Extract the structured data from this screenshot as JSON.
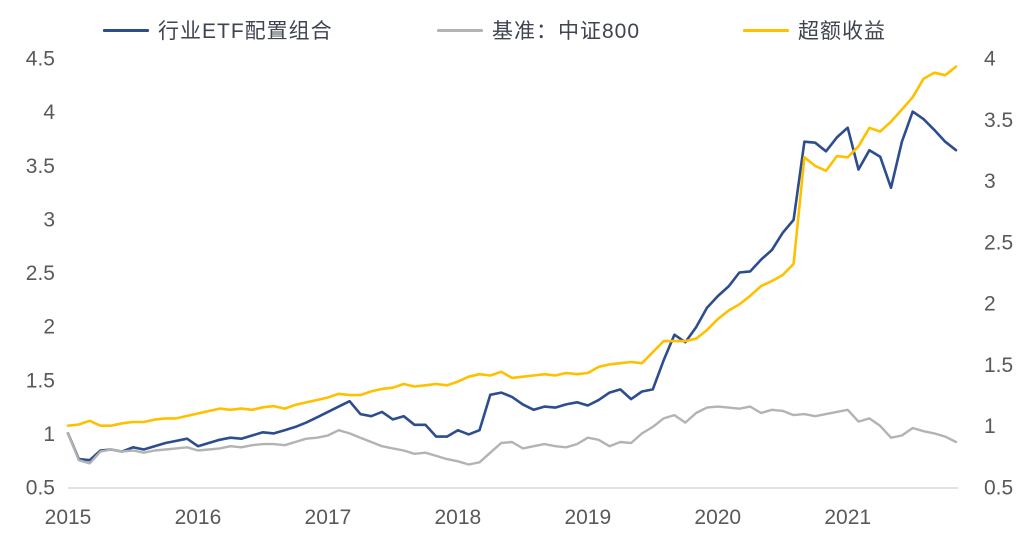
{
  "styles": {
    "background": "#ffffff",
    "axis_text_color": "#595959",
    "legend_text_color": "#3f4450",
    "baseline_color": "#d8d8d8"
  },
  "chart_data": {
    "type": "line",
    "title": "",
    "legend_position": "top",
    "grid": false,
    "x_axis": {
      "frequency": "monthly",
      "start": "2015-01",
      "end": "2021-11",
      "tick_labels": [
        "2015",
        "2016",
        "2017",
        "2018",
        "2019",
        "2020",
        "2021"
      ]
    },
    "y_axis_left": {
      "range": [
        0.5,
        4.5
      ],
      "tick_labels": [
        "4.5",
        "4",
        "3.5",
        "3",
        "2.5",
        "2",
        "1.5",
        "1",
        "0.5"
      ]
    },
    "y_axis_right": {
      "range": [
        0.5,
        4.0
      ],
      "tick_labels": [
        "4",
        "3.5",
        "3",
        "2.5",
        "2",
        "1.5",
        "1",
        "0.5"
      ]
    },
    "series": [
      {
        "key": "portfolio",
        "name": "行业ETF配置组合",
        "color": "#2d4d8e",
        "axis": "left",
        "stroke_width": 2.6,
        "values": [
          1.0,
          0.76,
          0.75,
          0.84,
          0.85,
          0.83,
          0.87,
          0.85,
          0.88,
          0.91,
          0.93,
          0.95,
          0.88,
          0.91,
          0.94,
          0.96,
          0.95,
          0.98,
          1.01,
          1.0,
          1.03,
          1.06,
          1.1,
          1.15,
          1.2,
          1.25,
          1.3,
          1.18,
          1.16,
          1.2,
          1.13,
          1.16,
          1.08,
          1.08,
          0.97,
          0.97,
          1.03,
          0.99,
          1.03,
          1.36,
          1.38,
          1.34,
          1.27,
          1.22,
          1.25,
          1.24,
          1.27,
          1.29,
          1.26,
          1.31,
          1.38,
          1.41,
          1.32,
          1.39,
          1.41,
          1.68,
          1.92,
          1.85,
          1.99,
          2.17,
          2.28,
          2.37,
          2.5,
          2.51,
          2.62,
          2.71,
          2.87,
          2.99,
          3.72,
          3.71,
          3.63,
          3.76,
          3.85,
          3.46,
          3.64,
          3.58,
          3.29,
          3.72,
          4.0,
          3.93,
          3.83,
          3.72,
          3.64
        ]
      },
      {
        "key": "benchmark",
        "name": "基准：中证800",
        "color": "#b3b3b3",
        "axis": "left",
        "stroke_width": 2.4,
        "values": [
          1.0,
          0.75,
          0.72,
          0.83,
          0.85,
          0.83,
          0.84,
          0.82,
          0.84,
          0.85,
          0.86,
          0.87,
          0.84,
          0.85,
          0.86,
          0.88,
          0.87,
          0.89,
          0.9,
          0.9,
          0.89,
          0.92,
          0.95,
          0.96,
          0.98,
          1.03,
          1.0,
          0.96,
          0.92,
          0.88,
          0.86,
          0.84,
          0.81,
          0.82,
          0.79,
          0.76,
          0.74,
          0.71,
          0.73,
          0.82,
          0.91,
          0.92,
          0.86,
          0.88,
          0.9,
          0.88,
          0.87,
          0.9,
          0.96,
          0.94,
          0.88,
          0.92,
          0.91,
          1.0,
          1.06,
          1.14,
          1.17,
          1.1,
          1.19,
          1.24,
          1.25,
          1.24,
          1.23,
          1.25,
          1.19,
          1.22,
          1.21,
          1.17,
          1.18,
          1.16,
          1.18,
          1.2,
          1.22,
          1.11,
          1.14,
          1.07,
          0.96,
          0.98,
          1.05,
          1.02,
          1.0,
          0.97,
          0.92
        ]
      },
      {
        "key": "excess_return",
        "name": "超额收益",
        "color": "#ffc000",
        "axis": "right",
        "stroke_width": 2.6,
        "values": [
          1.0,
          1.01,
          1.04,
          1.0,
          1.0,
          1.02,
          1.03,
          1.03,
          1.05,
          1.06,
          1.06,
          1.08,
          1.1,
          1.12,
          1.14,
          1.13,
          1.14,
          1.13,
          1.15,
          1.16,
          1.14,
          1.17,
          1.19,
          1.21,
          1.23,
          1.26,
          1.25,
          1.25,
          1.28,
          1.3,
          1.31,
          1.34,
          1.32,
          1.33,
          1.34,
          1.33,
          1.36,
          1.4,
          1.42,
          1.41,
          1.44,
          1.39,
          1.4,
          1.41,
          1.42,
          1.41,
          1.43,
          1.42,
          1.43,
          1.48,
          1.5,
          1.51,
          1.52,
          1.51,
          1.6,
          1.69,
          1.69,
          1.69,
          1.71,
          1.78,
          1.87,
          1.94,
          1.99,
          2.06,
          2.14,
          2.18,
          2.23,
          2.32,
          3.19,
          3.12,
          3.08,
          3.2,
          3.19,
          3.28,
          3.43,
          3.4,
          3.48,
          3.58,
          3.68,
          3.83,
          3.88,
          3.86,
          3.93
        ]
      }
    ]
  }
}
